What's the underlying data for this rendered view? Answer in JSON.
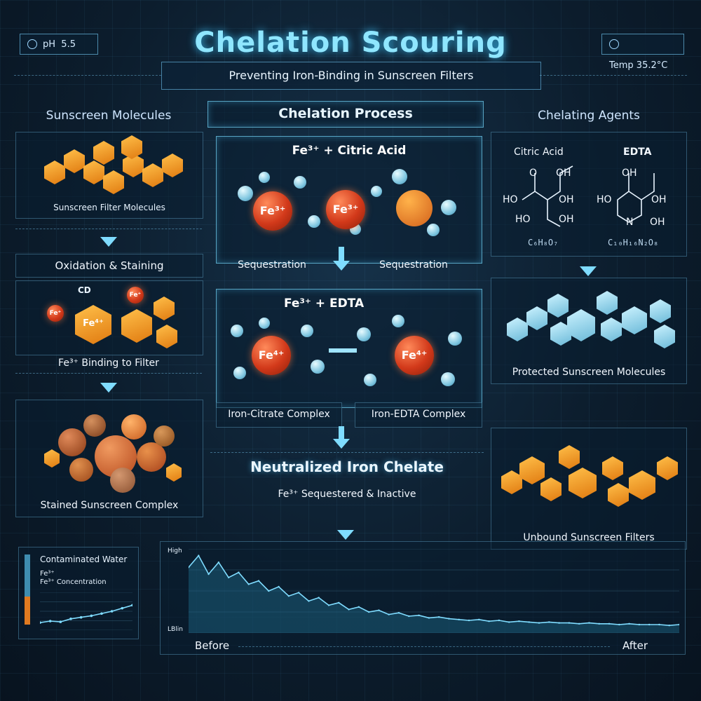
{
  "header": {
    "title": "Chelation Scouring",
    "subtitle": "Preventing Iron-Binding in Sunscreen Filters",
    "ph_label": "pH",
    "ph_value": "5.5",
    "temp_label": "Temp",
    "temp_value": "35.2°C"
  },
  "left": {
    "heading": "Sunscreen Molecules",
    "filter_label": "Sunscreen Filter Molecules",
    "oxidation_heading": "Oxidation & Staining",
    "cd_label": "CD",
    "fe_small": "Fe⁺",
    "fe_center": "Fe⁴⁺",
    "binding_label": "Fe³⁺ Binding to Filter",
    "stained_label": "Stained Sunscreen Complex"
  },
  "center": {
    "heading": "Chelation Process",
    "reaction1": "Fe³⁺ + Citric Acid",
    "fe1": "Fe³⁺",
    "fe2": "Fe³⁺",
    "seq_left": "Sequestration",
    "seq_right": "Sequestration",
    "reaction2": "Fe³⁺ + EDTA",
    "fe3": "Fe⁴⁺",
    "fe4": "Fe⁴⁺",
    "citrate_complex": "Iron-Citrate Complex",
    "edta_complex": "Iron-EDTA Complex",
    "neutralized_title": "Neutralized Iron Chelate",
    "neutralized_sub": "Fe³⁺ Sequestered & Inactive"
  },
  "right": {
    "heading": "Chelating Agents",
    "citric_title": "Citric Acid",
    "edta_title": "EDTA",
    "citric_formula": "C₆H₈O₇",
    "edta_formula": "C₁₀H₁₆N₂O₈",
    "protected_label": "Protected Sunscreen Molecules",
    "unbound_label": "Unbound Sunscreen Filters",
    "citric_atoms": {
      "o_top": "O",
      "oh_top": "OH",
      "ho_mid": "HO",
      "oh_mid": "OH",
      "ho_bot": "HO",
      "oh_bot": "OH"
    },
    "edta_atoms": {
      "oh_top": "OH",
      "ho_mid": "HO",
      "oh_mid": "OH",
      "n": "N",
      "oh_bot": "OH"
    }
  },
  "bottom": {
    "water_title": "Contaminated Water",
    "water_sub1": "Fe³⁺",
    "water_sub2": "Fe³⁺ Concentration",
    "axis_high": "High",
    "axis_low": "LBlin",
    "before": "Before",
    "after": "After"
  },
  "chart_data": {
    "type": "line",
    "title": "",
    "xlabel": "",
    "ylabel": "",
    "x_labels": [
      "Before",
      "After"
    ],
    "y_labels": [
      "High",
      "LBlin"
    ],
    "ylim": [
      0,
      100
    ],
    "series": [
      {
        "values": [
          78,
          92,
          70,
          84,
          66,
          72,
          58,
          62,
          50,
          55,
          44,
          48,
          38,
          42,
          33,
          36,
          28,
          31,
          25,
          27,
          22,
          24,
          20,
          21,
          18,
          19,
          17,
          16,
          15,
          16,
          14,
          15,
          13,
          14,
          13,
          12,
          13,
          12,
          12,
          11,
          12,
          11,
          11,
          10,
          11,
          10,
          10,
          10,
          9,
          10
        ]
      }
    ],
    "mini_series": [
      {
        "values": [
          20,
          24,
          22,
          30,
          34,
          38,
          44,
          50,
          58,
          66
        ]
      }
    ],
    "grid": true,
    "colors": {
      "line": "#7fdcff",
      "fill": "#1f6a8a"
    }
  }
}
